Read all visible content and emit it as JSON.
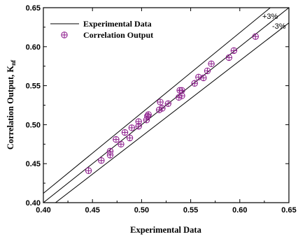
{
  "chart_data": {
    "type": "scatter",
    "xlabel": "Experimental Data",
    "ylabel_main": "Correlation Output, K",
    "ylabel_sub": "nf",
    "xlim": [
      0.4,
      0.65
    ],
    "ylim": [
      0.4,
      0.65
    ],
    "x_ticks": [
      "0.40",
      "0.45",
      "0.50",
      "0.55",
      "0.60",
      "0.65"
    ],
    "y_ticks": [
      "0.40",
      "0.45",
      "0.50",
      "0.55",
      "0.60",
      "0.65"
    ],
    "legend": {
      "position": "top-left",
      "line_label": "Experimental Data",
      "marker_label": "Correlation Output"
    },
    "reference_lines": [
      {
        "label": "",
        "slope": 1.0
      },
      {
        "label": "+3%",
        "slope": 1.03
      },
      {
        "label": "-3%",
        "slope": 0.97
      }
    ],
    "series": [
      {
        "name": "Correlation Output",
        "color": "#8b1a8b",
        "points": [
          [
            0.446,
            0.441
          ],
          [
            0.459,
            0.454
          ],
          [
            0.468,
            0.461
          ],
          [
            0.468,
            0.466
          ],
          [
            0.474,
            0.481
          ],
          [
            0.479,
            0.475
          ],
          [
            0.483,
            0.49
          ],
          [
            0.488,
            0.483
          ],
          [
            0.49,
            0.496
          ],
          [
            0.497,
            0.498
          ],
          [
            0.497,
            0.504
          ],
          [
            0.505,
            0.506
          ],
          [
            0.506,
            0.511
          ],
          [
            0.507,
            0.513
          ],
          [
            0.518,
            0.519
          ],
          [
            0.519,
            0.529
          ],
          [
            0.521,
            0.521
          ],
          [
            0.527,
            0.527
          ],
          [
            0.538,
            0.535
          ],
          [
            0.539,
            0.544
          ],
          [
            0.541,
            0.537
          ],
          [
            0.541,
            0.544
          ],
          [
            0.554,
            0.553
          ],
          [
            0.558,
            0.561
          ],
          [
            0.563,
            0.56
          ],
          [
            0.567,
            0.569
          ],
          [
            0.571,
            0.578
          ],
          [
            0.589,
            0.586
          ],
          [
            0.594,
            0.595
          ],
          [
            0.616,
            0.613
          ]
        ]
      }
    ]
  },
  "style": {
    "marker_color": "#8b1a8b",
    "line_color": "#000000"
  }
}
